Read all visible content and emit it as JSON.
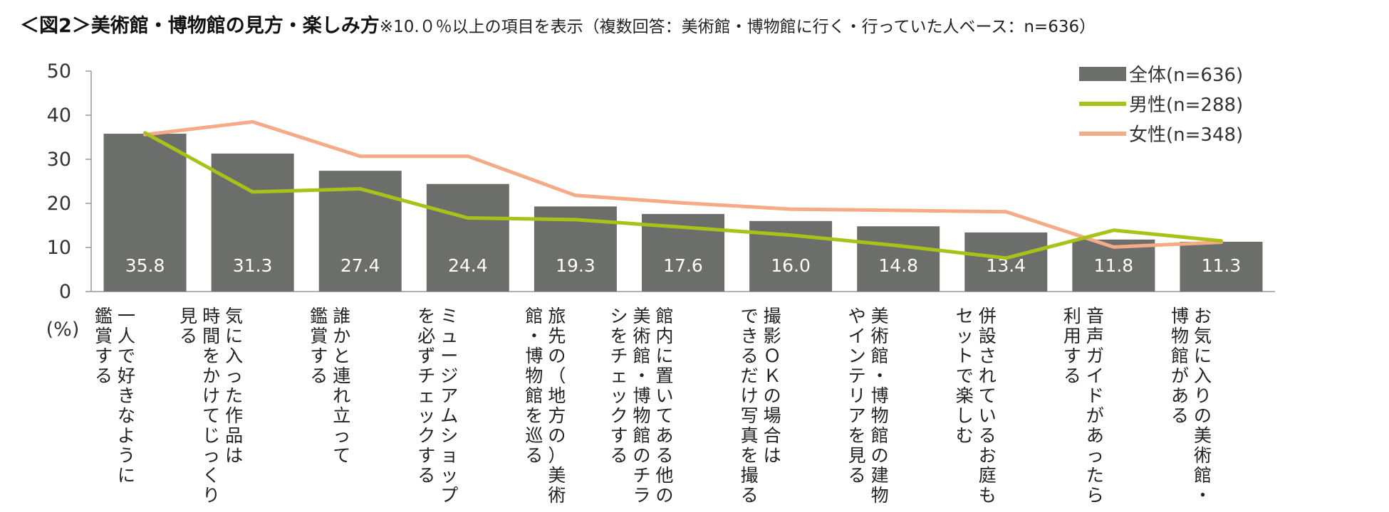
{
  "title": {
    "main": "＜図2＞美術館・博物館の見方・楽しみ方",
    "note": "※10.０％以上の項目を表示（複数回答：美術館・博物館に行く・行っていた人ベース：n=636）"
  },
  "colors": {
    "bar": "#6b6e6a",
    "male": "#a8c21a",
    "female": "#f5aa88",
    "axis": "#999999"
  },
  "chart_data": {
    "type": "bar",
    "title": "＜図2＞美術館・博物館の見方・楽しみ方",
    "ylabel": "(%)",
    "xlabel": "",
    "ylim": [
      0,
      50
    ],
    "yticks": [
      0,
      10,
      20,
      30,
      40,
      50
    ],
    "legend_position": "top-right",
    "categories": [
      "一人で好きなように鑑賞する",
      "気に入った作品は時間をかけてじっくり見る",
      "誰かと連れ立って鑑賞する",
      "ミュージアムショップを必ずチェックする",
      "旅先の（地方の）美術館・博物館を巡る",
      "館内に置いてある他の美術館・博物館のチラシをチェックする",
      "撮影ＯＫの場合はできるだけ写真を撮る",
      "美術館・博物館の建物やインテリアを見る",
      "併設されているお庭もセットで楽しむ",
      "音声ガイドがあったら利用する",
      "お気に入りの美術館・博物館がある"
    ],
    "label_lines": [
      [
        "一人で好きなように",
        "鑑賞する"
      ],
      [
        "気に入った作品は",
        "時間をかけてじっくり",
        "見る"
      ],
      [
        "誰かと連れ立って",
        "鑑賞する"
      ],
      [
        "ミュージアムショップ",
        "を必ずチェックする"
      ],
      [
        "旅先の（地方の）美術",
        "館・博物館を巡る"
      ],
      [
        "館内に置いてある他の",
        "美術館・博物館のチラ",
        "シをチェックする"
      ],
      [
        "撮影ＯＫの場合は",
        "できるだけ写真を撮る"
      ],
      [
        "美術館・博物館の建物",
        "やインテリアを見る"
      ],
      [
        "併設されているお庭も",
        "セットで楽しむ"
      ],
      [
        "音声ガイドがあったら",
        "利用する"
      ],
      [
        "お気に入りの美術館・",
        "博物館がある"
      ]
    ],
    "series": [
      {
        "name": "全体(n=636)",
        "kind": "bar",
        "values": [
          35.8,
          31.3,
          27.4,
          24.4,
          19.3,
          17.6,
          16.0,
          14.8,
          13.4,
          11.8,
          11.3
        ]
      },
      {
        "name": "男性(n=288)",
        "kind": "line",
        "values": [
          36.0,
          22.6,
          23.3,
          16.7,
          16.3,
          14.6,
          12.8,
          10.4,
          7.6,
          13.9,
          11.5
        ]
      },
      {
        "name": "女性(n=348)",
        "kind": "line",
        "values": [
          35.6,
          38.5,
          30.7,
          30.7,
          21.8,
          20.1,
          18.7,
          18.4,
          18.1,
          10.1,
          11.2
        ]
      }
    ],
    "data_labels": [
      "35.8",
      "31.3",
      "27.4",
      "24.4",
      "19.3",
      "17.6",
      "16.0",
      "14.8",
      "13.4",
      "11.8",
      "11.3"
    ]
  }
}
